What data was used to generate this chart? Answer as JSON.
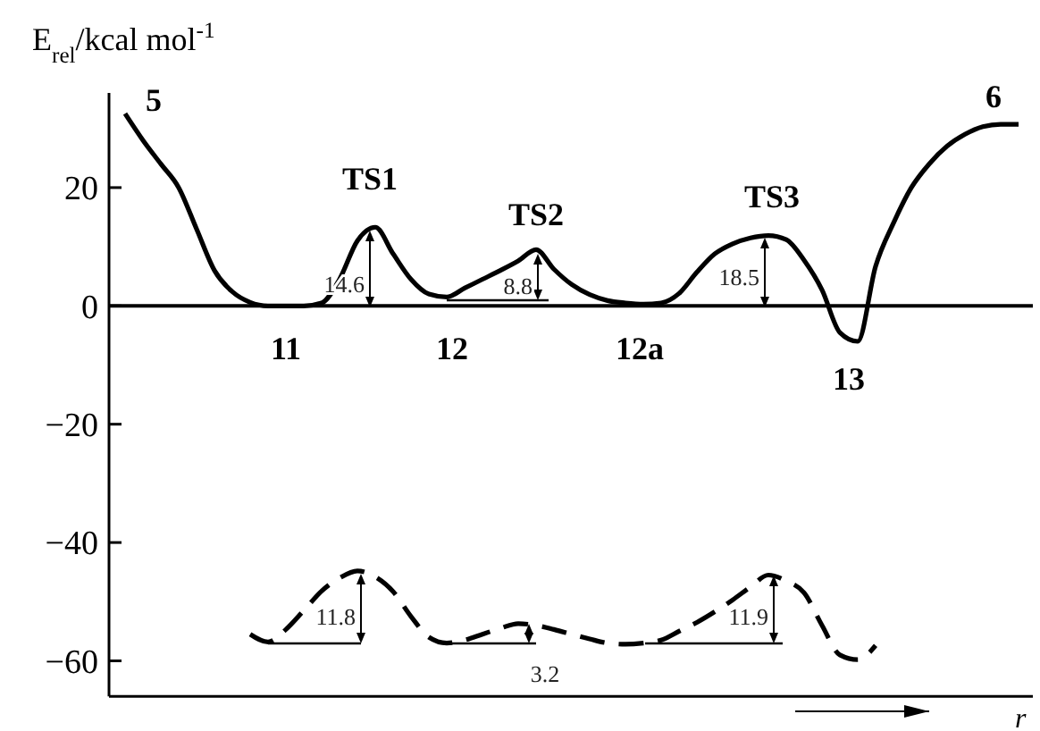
{
  "chart_data": {
    "type": "line",
    "ylabel": "E$_{rel}$/kcal mol$^{-1}$",
    "xlabel": "r",
    "categories": [
      null,
      null,
      null,
      null,
      null,
      null,
      null,
      null,
      null,
      null,
      null,
      null,
      null,
      null,
      null,
      null,
      null,
      null,
      null,
      null,
      null,
      null,
      null,
      null,
      null,
      null,
      null,
      null,
      null,
      null,
      null,
      null,
      null,
      null,
      null,
      null,
      null,
      null,
      null,
      null,
      null,
      null,
      null,
      null,
      null,
      null,
      null,
      null,
      null,
      null,
      null
    ],
    "series": [
      {
        "color": "#000000",
        "line_style": "solid",
        "values": [
          32.5,
          28,
          24,
          20,
          13,
          6,
          2.4,
          0.6,
          0,
          0,
          0,
          0.5,
          4.5,
          11,
          13.3,
          8.8,
          4.5,
          2,
          1.5,
          3,
          4.5,
          6,
          7.6,
          9.5,
          6.2,
          3.6,
          1.9,
          0.9,
          0.5,
          0.3,
          0.5,
          2.1,
          5.7,
          8.8,
          10.5,
          11.5,
          11.9,
          11.2,
          7.7,
          2.7,
          -4.5,
          -6,
          6.7,
          14,
          20,
          24,
          27,
          29,
          30.3,
          30.7,
          30.7
        ]
      },
      {
        "color": "#000000",
        "line_style": "dashed",
        "values": [
          null,
          null,
          null,
          null,
          null,
          null,
          null,
          -55.5,
          -56.8,
          -54.7,
          -51.5,
          -48.2,
          -46,
          -44.8,
          -45.8,
          -48.3,
          -52.5,
          -56,
          -57,
          -56.5,
          -55.5,
          -54.5,
          -53.7,
          -54,
          -54.7,
          -55.5,
          -56.3,
          -57,
          -57.2,
          -57,
          -56.5,
          -55,
          -53.5,
          -51.7,
          -49.7,
          -47.5,
          -45.5,
          -46.5,
          -48.5,
          -54,
          -59,
          -59.8,
          -57.4,
          null,
          null,
          null,
          null,
          null,
          null,
          null,
          null
        ]
      }
    ],
    "ylim": [
      -66,
      36
    ],
    "yticks": [
      {
        "value": 20,
        "label": "20"
      },
      {
        "value": 0,
        "label": "0"
      },
      {
        "value": -20,
        "label": "−20"
      },
      {
        "value": -40,
        "label": "−40"
      },
      {
        "value": -60,
        "label": "−60"
      }
    ],
    "ref_lines": [
      {
        "axis": "y",
        "value": 0
      }
    ],
    "annotations": [
      "5",
      "TS1",
      "TS2",
      "TS3",
      "6",
      "11",
      "12",
      "12a",
      "13",
      "14.6",
      "8.8",
      "18.5",
      "11.8",
      "3.2",
      "11.9"
    ],
    "tick_labels": "y",
    "grid": false,
    "legend": false,
    "marker": "none"
  }
}
